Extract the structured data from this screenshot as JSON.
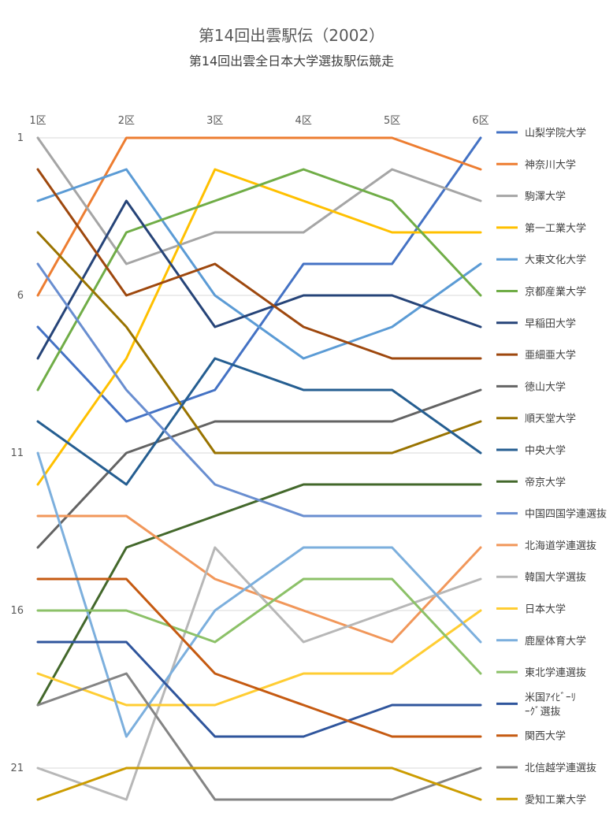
{
  "chart_data": {
    "type": "line",
    "title": "第14回出雲駅伝（2002）",
    "subtitle": "第14回出雲全日本大学選抜駅伝競走",
    "categories": [
      "1区",
      "2区",
      "3区",
      "4区",
      "5区",
      "6区"
    ],
    "y_ticks": [
      1,
      6,
      11,
      16,
      21
    ],
    "ylim": [
      1,
      22
    ],
    "y_reversed": true,
    "grid": true,
    "legend_position": "right",
    "series": [
      {
        "name": "山梨学院大学",
        "color": "#4472C4",
        "values": [
          7,
          10,
          9,
          5,
          5,
          1
        ]
      },
      {
        "name": "神奈川大学",
        "color": "#ED7D31",
        "values": [
          6,
          1,
          1,
          1,
          1,
          2
        ]
      },
      {
        "name": "駒澤大学",
        "color": "#A5A5A5",
        "values": [
          1,
          5,
          4,
          4,
          2,
          3
        ]
      },
      {
        "name": "第一工業大学",
        "color": "#FFC000",
        "values": [
          12,
          8,
          2,
          3,
          4,
          4
        ]
      },
      {
        "name": "大東文化大学",
        "color": "#5B9BD5",
        "values": [
          3,
          2,
          6,
          8,
          7,
          5
        ]
      },
      {
        "name": "京都産業大学",
        "color": "#70AD47",
        "values": [
          9,
          4,
          3,
          2,
          3,
          6
        ]
      },
      {
        "name": "早稲田大学",
        "color": "#264478",
        "values": [
          8,
          3,
          7,
          6,
          6,
          7
        ]
      },
      {
        "name": "亜細亜大学",
        "color": "#9E480E",
        "values": [
          2,
          6,
          5,
          7,
          8,
          8
        ]
      },
      {
        "name": "徳山大学",
        "color": "#636363",
        "values": [
          14,
          11,
          10,
          10,
          10,
          9
        ]
      },
      {
        "name": "順天堂大学",
        "color": "#997300",
        "values": [
          4,
          7,
          11,
          11,
          11,
          10
        ]
      },
      {
        "name": "中央大学",
        "color": "#255E91",
        "values": [
          10,
          12,
          8,
          9,
          9,
          11
        ]
      },
      {
        "name": "帝京大学",
        "color": "#43682B",
        "values": [
          19,
          14,
          13,
          12,
          12,
          12
        ]
      },
      {
        "name": "中国四国学連選抜",
        "color": "#698ED0",
        "values": [
          5,
          9,
          12,
          13,
          13,
          13
        ]
      },
      {
        "name": "北海道学連選抜",
        "color": "#F1975A",
        "values": [
          13,
          13,
          15,
          16,
          17,
          14
        ]
      },
      {
        "name": "韓国大学選抜",
        "color": "#B7B7B7",
        "values": [
          21,
          22,
          14,
          17,
          16,
          15
        ]
      },
      {
        "name": "日本大学",
        "color": "#FFCD33",
        "values": [
          18,
          19,
          19,
          18,
          18,
          16
        ]
      },
      {
        "name": "鹿屋体育大学",
        "color": "#7CAFDD",
        "values": [
          11,
          20,
          16,
          14,
          14,
          17
        ]
      },
      {
        "name": "東北学連選抜",
        "color": "#8CC168",
        "values": [
          16,
          16,
          17,
          15,
          15,
          18
        ]
      },
      {
        "name": "米国ｱｲﾋﾞｰﾘｰｸﾞ選抜",
        "color": "#2F559C",
        "values": [
          17,
          17,
          20,
          20,
          19,
          19
        ]
      },
      {
        "name": "関西大学",
        "color": "#C55A11",
        "values": [
          15,
          15,
          18,
          19,
          20,
          20
        ]
      },
      {
        "name": "北信越学連選抜",
        "color": "#848484",
        "values": [
          19,
          18,
          22,
          22,
          22,
          21
        ]
      },
      {
        "name": "愛知工業大学",
        "color": "#CC9C00",
        "values": [
          22,
          21,
          21,
          21,
          21,
          22
        ]
      }
    ]
  }
}
